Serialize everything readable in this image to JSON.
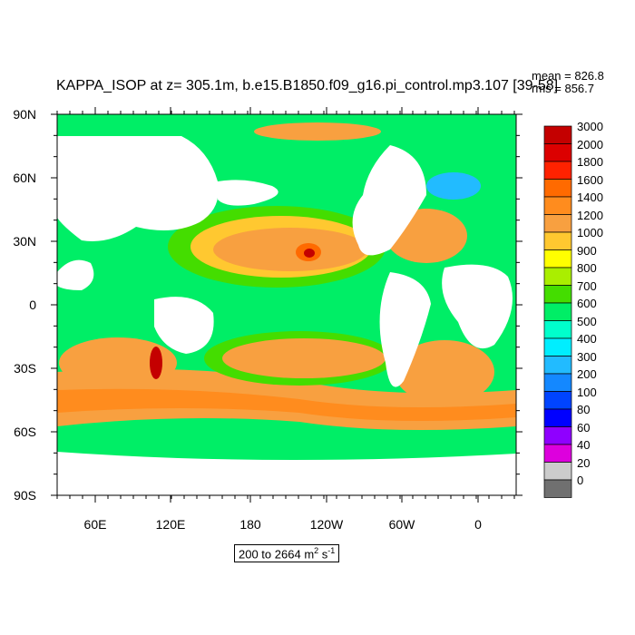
{
  "title": "KAPPA_ISOP at z= 305.1m, b.e15.B1850.f09_g16.pi_control.mp3.107 [39-58]",
  "stats": {
    "mean": "mean = 826.8",
    "rms": "rms = 856.7"
  },
  "units": {
    "range": "200 to 2664",
    "unit_base": "m",
    "unit_exp1": "2",
    "unit_mid": " s",
    "unit_exp2": "-1"
  },
  "lat_labels": [
    "90N",
    "60N",
    "30N",
    "0",
    "30S",
    "60S",
    "90S"
  ],
  "lon_labels": [
    "60E",
    "120E",
    "180",
    "120W",
    "60W",
    "0"
  ],
  "colorbar": {
    "levels": [
      "3000",
      "2000",
      "1800",
      "1600",
      "1400",
      "1200",
      "1000",
      "900",
      "800",
      "700",
      "600",
      "500",
      "400",
      "300",
      "200",
      "100",
      "80",
      "60",
      "40",
      "20",
      "0"
    ],
    "colors": [
      "#c40000",
      "#dc0000",
      "#ff2200",
      "#ff6a00",
      "#ff8c1e",
      "#f8a040",
      "#ffc830",
      "#ffff00",
      "#aaee00",
      "#44dd00",
      "#00ee66",
      "#00ffcc",
      "#00eeff",
      "#22bbff",
      "#1488ff",
      "#0044ff",
      "#0000ff",
      "#8f00ff",
      "#dd00dd",
      "#cccccc",
      "#707070"
    ]
  },
  "map_colors": {
    "land": "#ffffff",
    "sea_ice": "#ffffff",
    "ocean_low": "#00ee66",
    "ocean_mid": "#44dd00",
    "ocean_high": "#f8a040",
    "max": "#c40000"
  }
}
